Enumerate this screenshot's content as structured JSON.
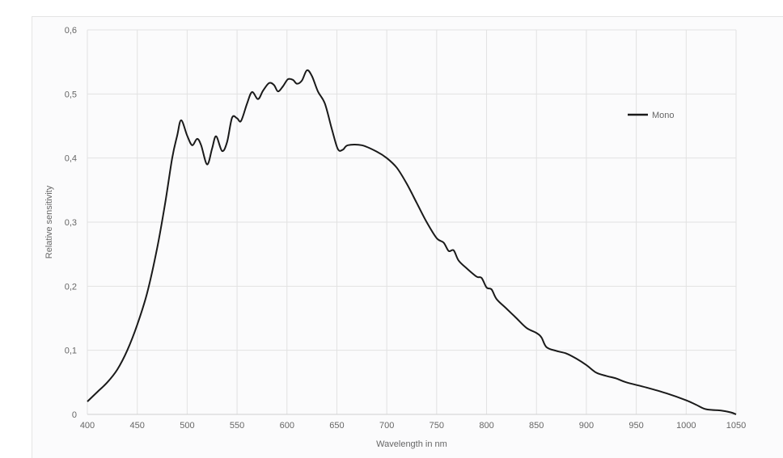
{
  "chart_data": {
    "type": "line",
    "title": "",
    "xlabel": "Wavelength in nm",
    "ylabel": "Relative sensitivity",
    "xlim": [
      400,
      1050
    ],
    "ylim": [
      0,
      0.6
    ],
    "x_ticks": [
      "400",
      "450",
      "500",
      "550",
      "600",
      "650",
      "700",
      "750",
      "800",
      "850",
      "900",
      "950",
      "1000",
      "1050"
    ],
    "y_ticks": [
      "0",
      "0,1",
      "0,2",
      "0,3",
      "0,4",
      "0,5",
      "0,6"
    ],
    "grid": true,
    "legend_position": "top-right",
    "series": [
      {
        "name": "Mono",
        "color": "#1a1a1a",
        "points": [
          [
            400,
            0.02
          ],
          [
            410,
            0.035
          ],
          [
            420,
            0.05
          ],
          [
            430,
            0.07
          ],
          [
            440,
            0.1
          ],
          [
            450,
            0.14
          ],
          [
            460,
            0.19
          ],
          [
            470,
            0.26
          ],
          [
            478,
            0.33
          ],
          [
            485,
            0.4
          ],
          [
            490,
            0.435
          ],
          [
            494,
            0.459
          ],
          [
            500,
            0.435
          ],
          [
            505,
            0.42
          ],
          [
            510,
            0.43
          ],
          [
            514,
            0.42
          ],
          [
            520,
            0.39
          ],
          [
            525,
            0.415
          ],
          [
            529,
            0.434
          ],
          [
            535,
            0.411
          ],
          [
            540,
            0.425
          ],
          [
            545,
            0.463
          ],
          [
            550,
            0.462
          ],
          [
            554,
            0.458
          ],
          [
            560,
            0.485
          ],
          [
            565,
            0.503
          ],
          [
            571,
            0.492
          ],
          [
            576,
            0.505
          ],
          [
            582,
            0.517
          ],
          [
            587,
            0.514
          ],
          [
            591,
            0.504
          ],
          [
            596,
            0.512
          ],
          [
            601,
            0.523
          ],
          [
            606,
            0.522
          ],
          [
            610,
            0.516
          ],
          [
            615,
            0.521
          ],
          [
            620,
            0.537
          ],
          [
            625,
            0.528
          ],
          [
            631,
            0.504
          ],
          [
            638,
            0.485
          ],
          [
            645,
            0.445
          ],
          [
            651,
            0.414
          ],
          [
            656,
            0.413
          ],
          [
            661,
            0.42
          ],
          [
            675,
            0.42
          ],
          [
            690,
            0.41
          ],
          [
            700,
            0.4
          ],
          [
            710,
            0.385
          ],
          [
            720,
            0.36
          ],
          [
            730,
            0.33
          ],
          [
            740,
            0.3
          ],
          [
            750,
            0.275
          ],
          [
            757,
            0.268
          ],
          [
            762,
            0.255
          ],
          [
            767,
            0.256
          ],
          [
            772,
            0.24
          ],
          [
            780,
            0.228
          ],
          [
            790,
            0.215
          ],
          [
            795,
            0.213
          ],
          [
            800,
            0.198
          ],
          [
            805,
            0.195
          ],
          [
            810,
            0.18
          ],
          [
            820,
            0.165
          ],
          [
            830,
            0.15
          ],
          [
            840,
            0.135
          ],
          [
            850,
            0.127
          ],
          [
            855,
            0.12
          ],
          [
            860,
            0.105
          ],
          [
            870,
            0.099
          ],
          [
            880,
            0.095
          ],
          [
            890,
            0.087
          ],
          [
            900,
            0.077
          ],
          [
            910,
            0.065
          ],
          [
            920,
            0.06
          ],
          [
            930,
            0.056
          ],
          [
            940,
            0.05
          ],
          [
            960,
            0.042
          ],
          [
            980,
            0.033
          ],
          [
            1000,
            0.022
          ],
          [
            1010,
            0.015
          ],
          [
            1020,
            0.008
          ],
          [
            1035,
            0.006
          ],
          [
            1045,
            0.003
          ],
          [
            1050,
            0
          ]
        ]
      }
    ]
  }
}
